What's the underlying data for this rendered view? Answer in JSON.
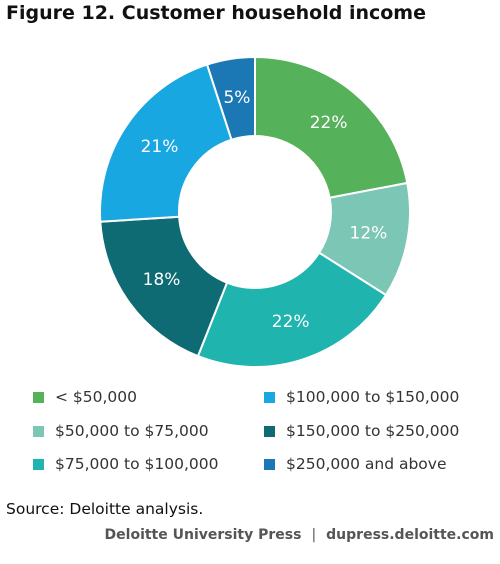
{
  "title": "Figure 12. Customer household income",
  "chart_data": {
    "type": "pie",
    "donut": true,
    "title": "Figure 12. Customer household income",
    "categories": [
      "< $50,000",
      "$50,000 to $75,000",
      "$75,000 to $100,000",
      "$150,000 to $250,000",
      "$100,000 to $150,000",
      "$250,000 and above"
    ],
    "values": [
      22,
      12,
      22,
      18,
      21,
      5
    ],
    "labels": [
      "22%",
      "12%",
      "22%",
      "18%",
      "21%",
      "5%"
    ],
    "colors": [
      "#55B15A",
      "#7CC6B5",
      "#1FB4AE",
      "#0F6B73",
      "#18A7E0",
      "#1C78B5"
    ],
    "legend_placement": "bottom"
  },
  "legend": [
    {
      "label": "< $50,000",
      "color": "#55B15A"
    },
    {
      "label": "$50,000 to $75,000",
      "color": "#7CC6B5"
    },
    {
      "label": "$75,000 to $100,000",
      "color": "#1FB4AE"
    },
    {
      "label": "$100,000 to $150,000",
      "color": "#18A7E0"
    },
    {
      "label": "$150,000 to $250,000",
      "color": "#0F6B73"
    },
    {
      "label": "$250,000 and above",
      "color": "#1C78B5"
    }
  ],
  "source": "Source: Deloitte analysis.",
  "credit": {
    "publisher": "Deloitte University Press",
    "separator": "|",
    "site": "dupress.deloitte.com"
  }
}
